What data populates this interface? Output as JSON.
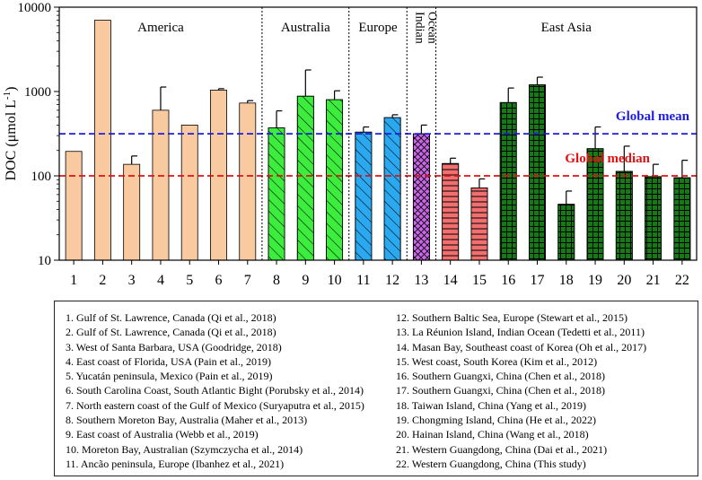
{
  "chart_data": {
    "type": "bar",
    "yscale": "log",
    "ylabel": "DOC (μmol L-1)",
    "ylabel_parts": [
      "DOC (μmol L",
      "-1",
      ")"
    ],
    "ylim": [
      10,
      10000
    ],
    "yticks": [
      "10",
      "100",
      "1000",
      "10000"
    ],
    "categories": [
      "1",
      "2",
      "3",
      "4",
      "5",
      "6",
      "7",
      "8",
      "9",
      "10",
      "11",
      "12",
      "13",
      "14",
      "15",
      "16",
      "17",
      "18",
      "19",
      "20",
      "21",
      "22"
    ],
    "values": [
      195,
      7000,
      137,
      600,
      400,
      1040,
      730,
      370,
      880,
      800,
      330,
      490,
      315,
      140,
      72,
      740,
      1200,
      46,
      210,
      113,
      98,
      95
    ],
    "error_upper": [
      null,
      null,
      172,
      1130,
      null,
      1080,
      780,
      590,
      1800,
      1020,
      380,
      530,
      400,
      162,
      92,
      1100,
      1480,
      66,
      380,
      225,
      137,
      153
    ],
    "regions": [
      {
        "name": "America",
        "from": 1,
        "to": 7
      },
      {
        "name": "Australia",
        "from": 8,
        "to": 10
      },
      {
        "name": "Europe",
        "from": 11,
        "to": 12
      },
      {
        "name": "Indian Ocean",
        "from": 13,
        "to": 13
      },
      {
        "name": "East Asia",
        "from": 14,
        "to": 22
      }
    ],
    "region_styles": [
      {
        "fill": "#f9caa0",
        "pattern": "none"
      },
      {
        "fill": "#3ded3d",
        "pattern": "diagonal"
      },
      {
        "fill": "#2aa8f0",
        "pattern": "diagonal"
      },
      {
        "fill": "#c966e6",
        "pattern": "crosshatch"
      },
      {
        "fill": "#f26f6f",
        "pattern": "horizontal"
      },
      {
        "fill": "#157a15",
        "pattern": "grid"
      }
    ],
    "bar_style_index": [
      0,
      0,
      0,
      0,
      0,
      0,
      0,
      1,
      1,
      1,
      2,
      2,
      3,
      4,
      4,
      5,
      5,
      5,
      5,
      5,
      5,
      5
    ],
    "reference_lines": [
      {
        "label": "Global mean",
        "value": 315,
        "color": "#1d1dde"
      },
      {
        "label": "Global median",
        "value": 100,
        "color": "#e01212"
      }
    ],
    "legend_entries": [
      "1. Gulf of St. Lawrence, Canada (Qi et al., 2018)",
      "2. Gulf of St. Lawrence, Canada (Qi et al., 2018)",
      "3. West of Santa Barbara, USA (Goodridge, 2018)",
      "4. East coast of Florida, USA (Pain et al., 2019)",
      "5. Yucatán peninsula, Mexico (Pain et al., 2019)",
      "6. South Carolina Coast, South Atlantic Bight (Porubsky et al., 2014)",
      "7. North eastern coast of the Gulf of Mexico (Suryaputra et al., 2015)",
      "8. Southern Moreton Bay, Australia (Maher et al., 2013)",
      "9. East coast of Australia (Webb et al., 2019)",
      "10. Moreton Bay, Australian (Szymczycha et al., 2014)",
      "11. Ancão peninsula, Europe (Ibanhez et al., 2021)",
      "12. Southern Baltic Sea, Europe (Stewart et al., 2015)",
      "13. La Réunion Island, Indian Ocean (Tedetti et al., 2011)",
      "14. Masan Bay, Southeast coast of Korea (Oh et al., 2017)",
      "15. West coast, South Korea (Kim et al., 2012)",
      "16. Southern Guangxi, China (Chen et al., 2018)",
      "17. Southern Guangxi, China (Chen et al., 2018)",
      "18. Taiwan Island, China (Yang et al., 2019)",
      "19. Chongming Island, China (He et al., 2022)",
      "20. Hainan Island, China (Wang et al., 2018)",
      "21. Western Guangdong, China (Dai et al., 2021)",
      "22. Western Guangdong, China (This study)"
    ]
  }
}
